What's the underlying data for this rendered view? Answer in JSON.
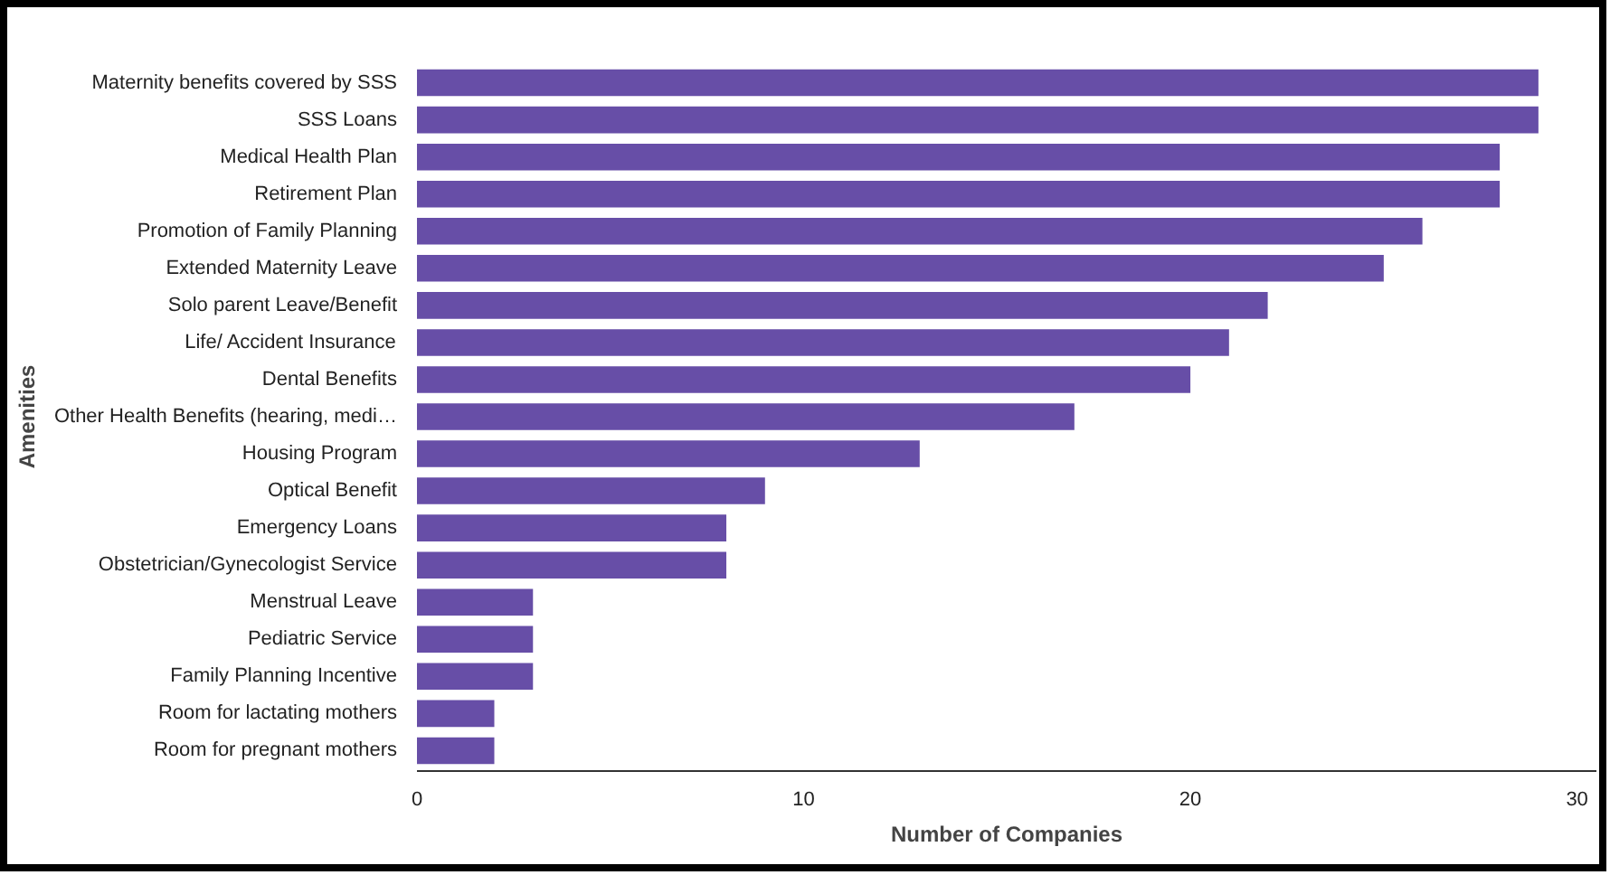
{
  "chart_data": {
    "type": "bar",
    "orientation": "horizontal",
    "xlabel": "Number of Companies",
    "ylabel": "Amenities",
    "categories": [
      "Maternity benefits covered by SSS",
      "SSS Loans",
      "Medical Health Plan",
      "Retirement Plan",
      "Promotion of Family Planning",
      "Extended Maternity Leave",
      "Solo parent Leave/Benefit",
      "Life/ Accident Insurance",
      "Dental Benefits",
      "Other Health Benefits (hearing, medi…",
      "Housing Program",
      "Optical Benefit",
      "Emergency Loans",
      "Obstetrician/Gynecologist Service",
      "Menstrual Leave",
      "Pediatric Service",
      "Family Planning Incentive",
      "Room for lactating mothers",
      "Room for pregnant mothers"
    ],
    "values": [
      29,
      29,
      28,
      28,
      26,
      25,
      22,
      21,
      20,
      17,
      13,
      9,
      8,
      8,
      3,
      3,
      3,
      2,
      2
    ],
    "color": "#674ea7",
    "xlim": [
      0,
      30.5
    ],
    "xticks": [
      0,
      10,
      20,
      30
    ],
    "grid": false
  }
}
